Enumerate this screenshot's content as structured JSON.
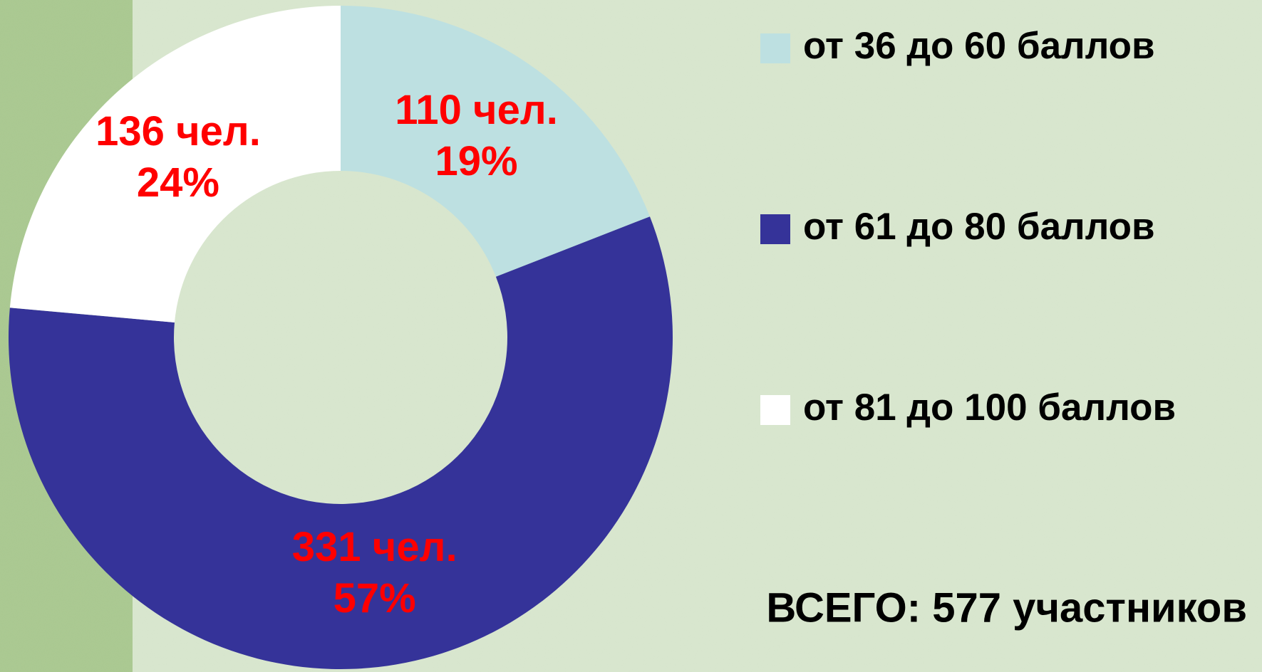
{
  "chart_data": {
    "type": "donut",
    "categories": [
      "от 36 до 60 баллов",
      "от 61 до 80 баллов",
      "от 81 до 100 баллов"
    ],
    "values": [
      110,
      331,
      136
    ],
    "value_labels": [
      "110 чел.",
      "331 чел.",
      "136 чел."
    ],
    "percent_labels": [
      "19%",
      "57%",
      "24%"
    ],
    "colors": [
      "#bde0e1",
      "#353399",
      "#ffffff"
    ],
    "label_color": "#ff0000",
    "annotation": "ВСЕГО: 577 участников",
    "legend": "right"
  }
}
